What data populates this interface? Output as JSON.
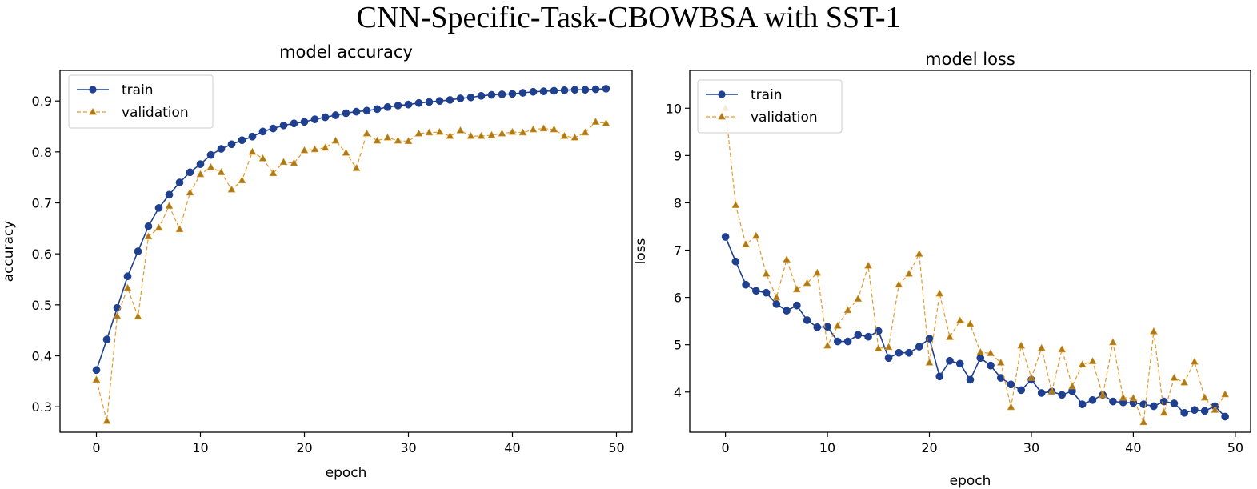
{
  "figure": {
    "title": "CNN-Specific-Task-CBOWBSA with SST-1"
  },
  "colors": {
    "train": "#1f3f8f",
    "validation": "#e39a2d",
    "validation_marker": "#a87a1a"
  },
  "chart_data": [
    {
      "type": "line",
      "title": "model accuracy",
      "xlabel": "epoch",
      "ylabel": "accuracy",
      "xlim": [
        -3.5,
        51.5
      ],
      "ylim": [
        0.25,
        0.96
      ],
      "xticks": [
        0,
        10,
        20,
        30,
        40,
        50
      ],
      "yticks": [
        0.3,
        0.4,
        0.5,
        0.6,
        0.7,
        0.8,
        0.9
      ],
      "ytick_labels": [
        "0.3",
        "0.4",
        "0.5",
        "0.6",
        "0.7",
        "0.8",
        "0.9"
      ],
      "legend": "top-left",
      "series": [
        {
          "name": "train",
          "marker": "circle",
          "linestyle": "solid",
          "values": [
            0.372,
            0.432,
            0.494,
            0.556,
            0.605,
            0.654,
            0.69,
            0.716,
            0.74,
            0.76,
            0.776,
            0.794,
            0.806,
            0.815,
            0.823,
            0.83,
            0.84,
            0.846,
            0.852,
            0.856,
            0.859,
            0.864,
            0.868,
            0.872,
            0.876,
            0.879,
            0.881,
            0.884,
            0.888,
            0.891,
            0.893,
            0.896,
            0.898,
            0.9,
            0.902,
            0.905,
            0.907,
            0.91,
            0.912,
            0.913,
            0.914,
            0.916,
            0.918,
            0.919,
            0.92,
            0.921,
            0.922,
            0.922,
            0.923,
            0.924
          ]
        },
        {
          "name": "validation",
          "marker": "triangle",
          "linestyle": "dashed",
          "values": [
            0.353,
            0.272,
            0.478,
            0.533,
            0.477,
            0.634,
            0.651,
            0.694,
            0.648,
            0.72,
            0.756,
            0.77,
            0.76,
            0.726,
            0.744,
            0.8,
            0.787,
            0.758,
            0.78,
            0.778,
            0.803,
            0.805,
            0.808,
            0.822,
            0.798,
            0.768,
            0.836,
            0.822,
            0.828,
            0.822,
            0.821,
            0.836,
            0.838,
            0.839,
            0.831,
            0.842,
            0.831,
            0.831,
            0.833,
            0.836,
            0.839,
            0.838,
            0.844,
            0.846,
            0.844,
            0.831,
            0.828,
            0.838,
            0.859,
            0.856
          ]
        }
      ]
    },
    {
      "type": "line",
      "title": "model loss",
      "xlabel": "epoch",
      "ylabel": "loss",
      "xlim": [
        -3.5,
        51.5
      ],
      "ylim": [
        3.15,
        10.8
      ],
      "xticks": [
        0,
        10,
        20,
        30,
        40,
        50
      ],
      "yticks": [
        4,
        5,
        6,
        7,
        8,
        9,
        10
      ],
      "ytick_labels": [
        "4",
        "5",
        "6",
        "7",
        "8",
        "9",
        "10"
      ],
      "legend": "top-left",
      "series": [
        {
          "name": "train",
          "marker": "circle",
          "linestyle": "solid",
          "values": [
            7.28,
            6.76,
            6.27,
            6.14,
            6.1,
            5.86,
            5.72,
            5.83,
            5.52,
            5.37,
            5.38,
            5.07,
            5.07,
            5.21,
            5.17,
            5.29,
            4.72,
            4.83,
            4.83,
            4.96,
            5.13,
            4.33,
            4.66,
            4.6,
            4.26,
            4.72,
            4.56,
            4.3,
            4.16,
            4.04,
            4.26,
            3.98,
            4.01,
            3.94,
            4.02,
            3.74,
            3.83,
            3.94,
            3.8,
            3.78,
            3.77,
            3.74,
            3.7,
            3.8,
            3.76,
            3.56,
            3.62,
            3.6,
            3.7,
            3.48
          ]
        },
        {
          "name": "validation",
          "marker": "triangle",
          "linestyle": "dashed",
          "values": [
            10.0,
            7.95,
            7.12,
            7.3,
            6.5,
            6.0,
            6.8,
            6.17,
            6.3,
            6.52,
            4.98,
            5.4,
            5.73,
            5.97,
            6.67,
            4.92,
            4.95,
            6.27,
            6.5,
            6.92,
            4.62,
            6.08,
            5.16,
            5.51,
            5.44,
            4.84,
            4.82,
            4.62,
            3.68,
            4.98,
            4.3,
            4.93,
            4.01,
            4.9,
            4.12,
            4.58,
            4.65,
            3.93,
            5.05,
            3.88,
            3.87,
            3.36,
            5.28,
            3.56,
            4.3,
            4.2,
            4.64,
            3.88,
            3.62,
            3.95
          ]
        }
      ]
    }
  ]
}
